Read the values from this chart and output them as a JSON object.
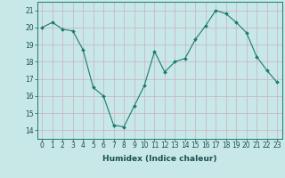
{
  "x": [
    0,
    1,
    2,
    3,
    4,
    5,
    6,
    7,
    8,
    9,
    10,
    11,
    12,
    13,
    14,
    15,
    16,
    17,
    18,
    19,
    20,
    21,
    22,
    23
  ],
  "y": [
    20.0,
    20.3,
    19.9,
    19.8,
    18.7,
    16.5,
    16.0,
    14.3,
    14.2,
    15.4,
    16.6,
    18.6,
    17.4,
    18.0,
    18.2,
    19.3,
    20.1,
    21.0,
    20.8,
    20.3,
    19.7,
    18.3,
    17.5,
    16.8
  ],
  "xlabel": "Humidex (Indice chaleur)",
  "ylim": [
    13.5,
    21.5
  ],
  "xlim": [
    -0.5,
    23.5
  ],
  "yticks": [
    14,
    15,
    16,
    17,
    18,
    19,
    20,
    21
  ],
  "xticks": [
    0,
    1,
    2,
    3,
    4,
    5,
    6,
    7,
    8,
    9,
    10,
    11,
    12,
    13,
    14,
    15,
    16,
    17,
    18,
    19,
    20,
    21,
    22,
    23
  ],
  "line_color": "#1a7a6e",
  "marker_color": "#1a7a6e",
  "bg_color": "#c8e8e8",
  "grid_color": "#c8b8c8",
  "axes_color": "#1a7a6e",
  "label_color": "#1a5050",
  "tick_label_fontsize": 5.5,
  "xlabel_fontsize": 6.5
}
